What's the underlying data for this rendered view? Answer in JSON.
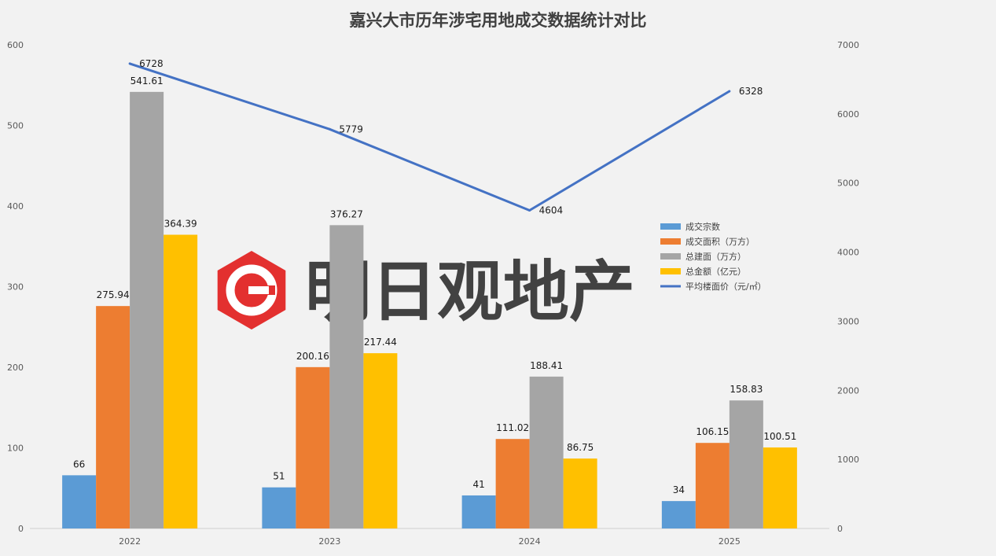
{
  "title": "嘉兴大市历年涉宅用地成交数据统计对比",
  "watermark": {
    "text": "明日观地产",
    "color": "#e3302f"
  },
  "chart_data": {
    "type": "bar",
    "categories": [
      "2022",
      "2023",
      "2024",
      "2025"
    ],
    "series": [
      {
        "name": "成交宗数",
        "axis": "left",
        "type": "bar",
        "color": "#5b9bd5",
        "values": [
          66,
          51,
          41,
          34
        ],
        "labels": [
          "66",
          "51",
          "41",
          "34"
        ]
      },
      {
        "name": "成交面积（万方）",
        "axis": "left",
        "type": "bar",
        "color": "#ed7d31",
        "values": [
          275.94,
          200.16,
          111.02,
          106.15
        ],
        "labels": [
          "275.94",
          "200.16",
          "111.02",
          "106.15"
        ]
      },
      {
        "name": "总建面（万方）",
        "axis": "left",
        "type": "bar",
        "color": "#a5a5a5",
        "values": [
          541.61,
          376.27,
          188.41,
          158.83
        ],
        "labels": [
          "541.61",
          "376.27",
          "188.41",
          "158.83"
        ]
      },
      {
        "name": "总金额（亿元）",
        "axis": "left",
        "type": "bar",
        "color": "#ffc000",
        "values": [
          364.39,
          217.44,
          86.75,
          100.51
        ],
        "labels": [
          "364.39",
          "217.44",
          "86.75",
          "100.51"
        ]
      },
      {
        "name": "平均楼面价（元/㎡）",
        "axis": "right",
        "type": "line",
        "color": "#4472c4",
        "values": [
          6728,
          5779,
          4604,
          6328
        ],
        "labels": [
          "6728",
          "5779",
          "4604",
          "6328"
        ]
      }
    ],
    "y_left": {
      "min": 0,
      "max": 600,
      "ticks": [
        "0",
        "100",
        "200",
        "300",
        "400",
        "500",
        "600"
      ]
    },
    "y_right": {
      "min": 0,
      "max": 7000,
      "ticks": [
        "0",
        "1000",
        "2000",
        "3000",
        "4000",
        "5000",
        "6000",
        "7000"
      ]
    },
    "grid": false,
    "legend_position": "right-center"
  }
}
